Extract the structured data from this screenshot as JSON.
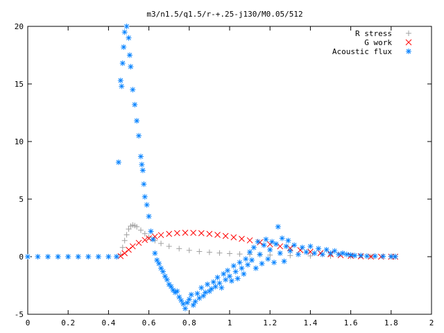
{
  "chart_data": {
    "type": "scatter",
    "title": "m3/n1.5/q1.5/r-+.25-j130/M0.05/512",
    "xlabel": "",
    "ylabel": "",
    "xlim": [
      0,
      2
    ],
    "ylim": [
      -5,
      20
    ],
    "x_ticks": [
      "0",
      "0.2",
      "0.4",
      "0.6",
      "0.8",
      "1",
      "1.2",
      "1.4",
      "1.6",
      "1.8",
      "2"
    ],
    "y_ticks": [
      "-5",
      "0",
      "5",
      "10",
      "15",
      "20"
    ],
    "grid": false,
    "legend_position": "top-right",
    "series": [
      {
        "name": "R stress",
        "marker": "plus",
        "color": "#a0a0a0",
        "points": [
          [
            0,
            0
          ],
          [
            0.05,
            0
          ],
          [
            0.1,
            0
          ],
          [
            0.15,
            0
          ],
          [
            0.2,
            0
          ],
          [
            0.25,
            0
          ],
          [
            0.3,
            0
          ],
          [
            0.35,
            0
          ],
          [
            0.4,
            0
          ],
          [
            0.44,
            0
          ],
          [
            0.46,
            0.2
          ],
          [
            0.47,
            0.8
          ],
          [
            0.48,
            1.4
          ],
          [
            0.49,
            1.9
          ],
          [
            0.5,
            2.4
          ],
          [
            0.51,
            2.65
          ],
          [
            0.52,
            2.75
          ],
          [
            0.53,
            2.7
          ],
          [
            0.54,
            2.6
          ],
          [
            0.56,
            2.3
          ],
          [
            0.58,
            2.0
          ],
          [
            0.6,
            1.7
          ],
          [
            0.63,
            1.4
          ],
          [
            0.66,
            1.15
          ],
          [
            0.7,
            0.9
          ],
          [
            0.75,
            0.7
          ],
          [
            0.8,
            0.55
          ],
          [
            0.85,
            0.45
          ],
          [
            0.9,
            0.38
          ],
          [
            0.95,
            0.32
          ],
          [
            1.0,
            0.27
          ],
          [
            1.05,
            0.23
          ],
          [
            1.1,
            0.2
          ],
          [
            1.15,
            0.17
          ],
          [
            1.2,
            0.14
          ],
          [
            1.3,
            0.1
          ],
          [
            1.4,
            0.07
          ],
          [
            1.5,
            0.05
          ],
          [
            1.6,
            0.03
          ],
          [
            1.7,
            0.02
          ],
          [
            1.8,
            0.01
          ],
          [
            1.82,
            0.01
          ]
        ]
      },
      {
        "name": "G work",
        "marker": "cross",
        "color": "#ff0000",
        "points": [
          [
            0.46,
            0.05
          ],
          [
            0.48,
            0.3
          ],
          [
            0.5,
            0.6
          ],
          [
            0.52,
            0.9
          ],
          [
            0.55,
            1.2
          ],
          [
            0.58,
            1.45
          ],
          [
            0.6,
            1.6
          ],
          [
            0.63,
            1.75
          ],
          [
            0.66,
            1.88
          ],
          [
            0.7,
            1.98
          ],
          [
            0.74,
            2.05
          ],
          [
            0.78,
            2.08
          ],
          [
            0.82,
            2.07
          ],
          [
            0.86,
            2.04
          ],
          [
            0.9,
            1.98
          ],
          [
            0.94,
            1.9
          ],
          [
            0.98,
            1.8
          ],
          [
            1.02,
            1.68
          ],
          [
            1.06,
            1.55
          ],
          [
            1.1,
            1.42
          ],
          [
            1.15,
            1.25
          ],
          [
            1.2,
            1.08
          ],
          [
            1.25,
            0.9
          ],
          [
            1.3,
            0.73
          ],
          [
            1.35,
            0.57
          ],
          [
            1.4,
            0.43
          ],
          [
            1.45,
            0.31
          ],
          [
            1.5,
            0.21
          ],
          [
            1.55,
            0.13
          ],
          [
            1.6,
            0.07
          ],
          [
            1.65,
            0.03
          ],
          [
            1.7,
            0.01
          ],
          [
            1.75,
            0.0
          ],
          [
            1.8,
            0.0
          ],
          [
            1.82,
            0.0
          ]
        ]
      },
      {
        "name": "Acoustic flux",
        "marker": "star",
        "color": "#0080ff",
        "points": [
          [
            0,
            0
          ],
          [
            0.05,
            0
          ],
          [
            0.1,
            0
          ],
          [
            0.15,
            0
          ],
          [
            0.2,
            0
          ],
          [
            0.25,
            0
          ],
          [
            0.3,
            0
          ],
          [
            0.35,
            0
          ],
          [
            0.4,
            0
          ],
          [
            0.44,
            0
          ],
          [
            0.45,
            8.2
          ],
          [
            0.46,
            15.3
          ],
          [
            0.465,
            14.8
          ],
          [
            0.47,
            16.8
          ],
          [
            0.475,
            18.2
          ],
          [
            0.48,
            19.5
          ],
          [
            0.49,
            20.0
          ],
          [
            0.5,
            19.0
          ],
          [
            0.505,
            17.5
          ],
          [
            0.51,
            16.5
          ],
          [
            0.52,
            14.5
          ],
          [
            0.53,
            13.2
          ],
          [
            0.54,
            11.8
          ],
          [
            0.55,
            10.5
          ],
          [
            0.56,
            8.7
          ],
          [
            0.565,
            8.0
          ],
          [
            0.57,
            7.5
          ],
          [
            0.575,
            6.3
          ],
          [
            0.58,
            5.2
          ],
          [
            0.59,
            4.5
          ],
          [
            0.6,
            3.5
          ],
          [
            0.61,
            2.2
          ],
          [
            0.62,
            1.5
          ],
          [
            0.63,
            0.3
          ],
          [
            0.64,
            -0.3
          ],
          [
            0.65,
            -0.6
          ],
          [
            0.66,
            -1.0
          ],
          [
            0.67,
            -1.3
          ],
          [
            0.68,
            -1.7
          ],
          [
            0.69,
            -2.0
          ],
          [
            0.7,
            -2.4
          ],
          [
            0.71,
            -2.6
          ],
          [
            0.72,
            -2.9
          ],
          [
            0.73,
            -3.1
          ],
          [
            0.74,
            -3.0
          ],
          [
            0.75,
            -3.5
          ],
          [
            0.76,
            -3.8
          ],
          [
            0.77,
            -4.1
          ],
          [
            0.78,
            -4.5
          ],
          [
            0.79,
            -4.0
          ],
          [
            0.8,
            -3.7
          ],
          [
            0.81,
            -3.3
          ],
          [
            0.82,
            -4.2
          ],
          [
            0.83,
            -3.9
          ],
          [
            0.84,
            -3.2
          ],
          [
            0.85,
            -3.6
          ],
          [
            0.86,
            -2.7
          ],
          [
            0.87,
            -3.4
          ],
          [
            0.88,
            -3.1
          ],
          [
            0.89,
            -2.4
          ],
          [
            0.9,
            -3.0
          ],
          [
            0.91,
            -2.8
          ],
          [
            0.92,
            -2.2
          ],
          [
            0.93,
            -2.6
          ],
          [
            0.94,
            -1.8
          ],
          [
            0.95,
            -2.3
          ],
          [
            0.96,
            -2.7
          ],
          [
            0.97,
            -1.5
          ],
          [
            0.98,
            -2.0
          ],
          [
            0.99,
            -1.2
          ],
          [
            1.0,
            -1.7
          ],
          [
            1.01,
            -2.1
          ],
          [
            1.02,
            -0.8
          ],
          [
            1.03,
            -1.3
          ],
          [
            1.04,
            -1.9
          ],
          [
            1.05,
            -0.5
          ],
          [
            1.06,
            -1.0
          ],
          [
            1.07,
            -1.5
          ],
          [
            1.08,
            -0.2
          ],
          [
            1.09,
            -0.7
          ],
          [
            1.1,
            0.4
          ],
          [
            1.11,
            -0.3
          ],
          [
            1.12,
            0.8
          ],
          [
            1.13,
            -1.0
          ],
          [
            1.14,
            1.3
          ],
          [
            1.15,
            0.2
          ],
          [
            1.16,
            -0.6
          ],
          [
            1.17,
            1.0
          ],
          [
            1.18,
            1.5
          ],
          [
            1.19,
            -0.2
          ],
          [
            1.2,
            0.6
          ],
          [
            1.21,
            1.3
          ],
          [
            1.22,
            -0.5
          ],
          [
            1.23,
            1.1
          ],
          [
            1.24,
            2.6
          ],
          [
            1.25,
            0.3
          ],
          [
            1.26,
            1.6
          ],
          [
            1.27,
            -0.4
          ],
          [
            1.28,
            0.9
          ],
          [
            1.29,
            1.4
          ],
          [
            1.3,
            0.5
          ],
          [
            1.32,
            1.0
          ],
          [
            1.34,
            0.2
          ],
          [
            1.36,
            0.8
          ],
          [
            1.38,
            0.4
          ],
          [
            1.4,
            0.9
          ],
          [
            1.42,
            0.3
          ],
          [
            1.44,
            0.7
          ],
          [
            1.46,
            0.2
          ],
          [
            1.48,
            0.6
          ],
          [
            1.5,
            0.3
          ],
          [
            1.52,
            0.5
          ],
          [
            1.54,
            0.2
          ],
          [
            1.56,
            0.3
          ],
          [
            1.58,
            0.2
          ],
          [
            1.6,
            0.15
          ],
          [
            1.62,
            0.1
          ],
          [
            1.65,
            0.1
          ],
          [
            1.68,
            0.05
          ],
          [
            1.72,
            0.05
          ],
          [
            1.76,
            0.03
          ],
          [
            1.8,
            0.02
          ],
          [
            1.82,
            0.01
          ]
        ]
      }
    ]
  }
}
